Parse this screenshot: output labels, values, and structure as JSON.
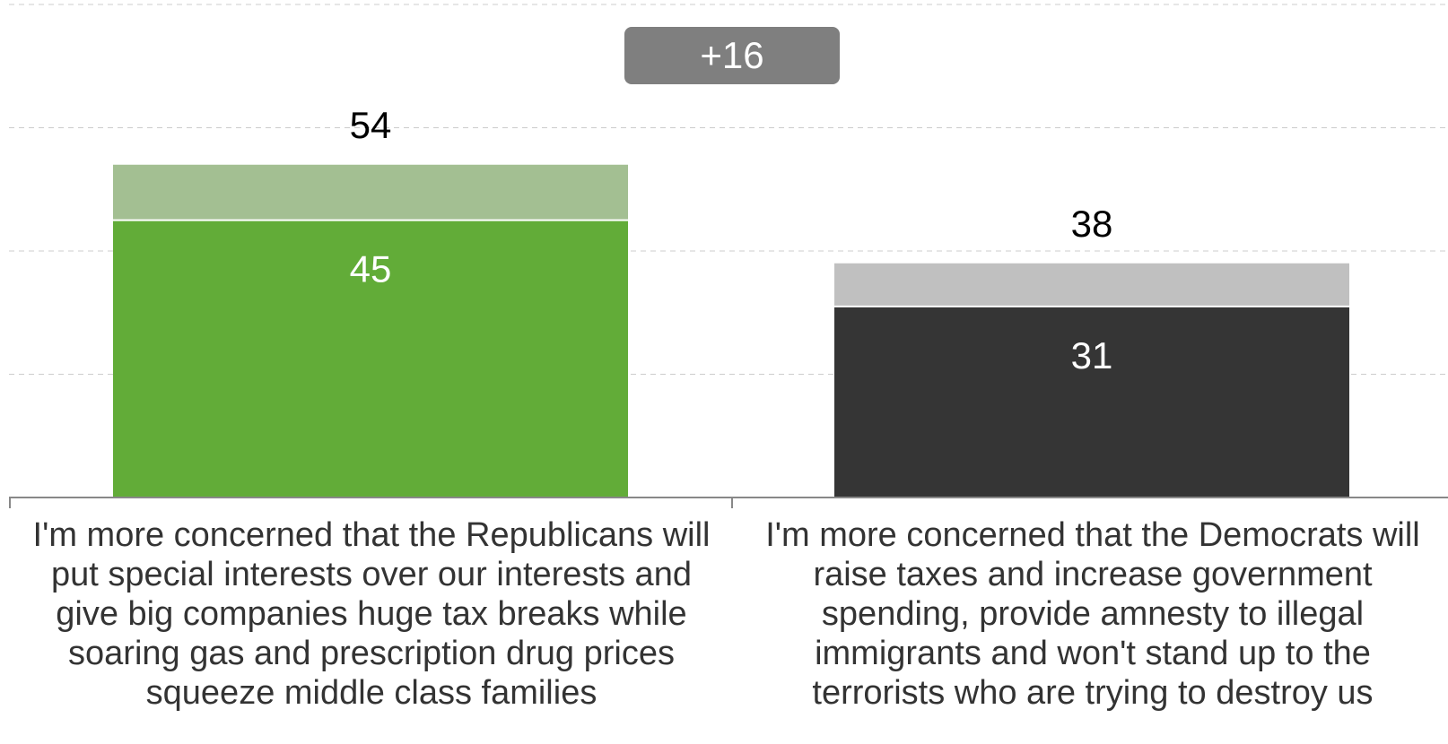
{
  "chart_data": {
    "type": "bar",
    "stacked": true,
    "categories": [
      "I'm more concerned that the Republicans will put special interests over our interests and give big companies huge tax breaks while soaring gas and prescription drug prices squeeze middle class families",
      "I'm more concerned that the Democrats will raise taxes and increase government spending, provide amnesty to illegal immigrants and won't stand up to the terrorists who are trying to destroy us"
    ],
    "category_lines": [
      [
        "I'm more concerned that the Republicans will",
        "put special interests over our interests and",
        "give big companies huge tax breaks while",
        "soaring gas and prescription drug prices",
        "squeeze middle class families"
      ],
      [
        "I'm more concerned that the Democrats will",
        "raise taxes and increase government",
        "spending, provide amnesty to illegal",
        "immigrants and won't stand up to the",
        "terrorists who are trying to destroy us"
      ]
    ],
    "series": [
      {
        "values": [
          45,
          31
        ],
        "colors": [
          "#62ac38",
          "#353535"
        ]
      },
      {
        "values": [
          9,
          7
        ],
        "colors": [
          "#a3bf92",
          "#c0c0c0"
        ]
      }
    ],
    "totals": [
      54,
      38
    ],
    "difference_label": "+16",
    "ylim": [
      0,
      80
    ],
    "grid": true
  }
}
